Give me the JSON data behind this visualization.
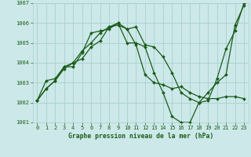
{
  "background_color": "#cce8e8",
  "grid_color": "#aad0d0",
  "line_color": "#1a5c1a",
  "title": "Graphe pression niveau de la mer (hPa)",
  "xlim": [
    -0.5,
    23.5
  ],
  "ylim": [
    1001,
    1007
  ],
  "xticks": [
    0,
    1,
    2,
    3,
    4,
    5,
    6,
    7,
    8,
    9,
    10,
    11,
    12,
    13,
    14,
    15,
    16,
    17,
    18,
    19,
    20,
    21,
    22,
    23
  ],
  "yticks": [
    1001,
    1002,
    1003,
    1004,
    1005,
    1006,
    1007
  ],
  "series": [
    [
      1002.1,
      1002.7,
      1003.1,
      1003.7,
      1004.0,
      1004.6,
      1005.0,
      1005.5,
      1005.8,
      1006.0,
      1005.0,
      1005.0,
      1004.8,
      1003.5,
      1002.5,
      1001.3,
      1001.0,
      1001.0,
      1002.0,
      1002.5,
      1003.0,
      1003.4,
      1005.9,
      1006.9
    ],
    [
      1002.1,
      1002.7,
      1003.1,
      1003.8,
      1003.8,
      1004.5,
      1005.5,
      1005.6,
      1005.7,
      1006.0,
      1005.7,
      1004.9,
      1003.4,
      1003.0,
      1002.9,
      1002.7,
      1002.8,
      1002.5,
      1002.3,
      1002.2,
      1002.2,
      1002.3,
      1002.3,
      1002.2
    ],
    [
      1002.1,
      1003.1,
      1003.2,
      1003.8,
      1004.0,
      1004.2,
      1004.8,
      1005.1,
      1005.8,
      1005.9,
      1005.7,
      1005.8,
      1004.9,
      1004.8,
      1004.3,
      1003.5,
      1002.5,
      1002.2,
      1002.0,
      1002.1,
      1003.2,
      1004.7,
      1005.6,
      1007.0
    ]
  ],
  "title_fontsize": 5.8,
  "tick_fontsize": 5.0,
  "linewidth": 0.9,
  "markersize": 2.0
}
